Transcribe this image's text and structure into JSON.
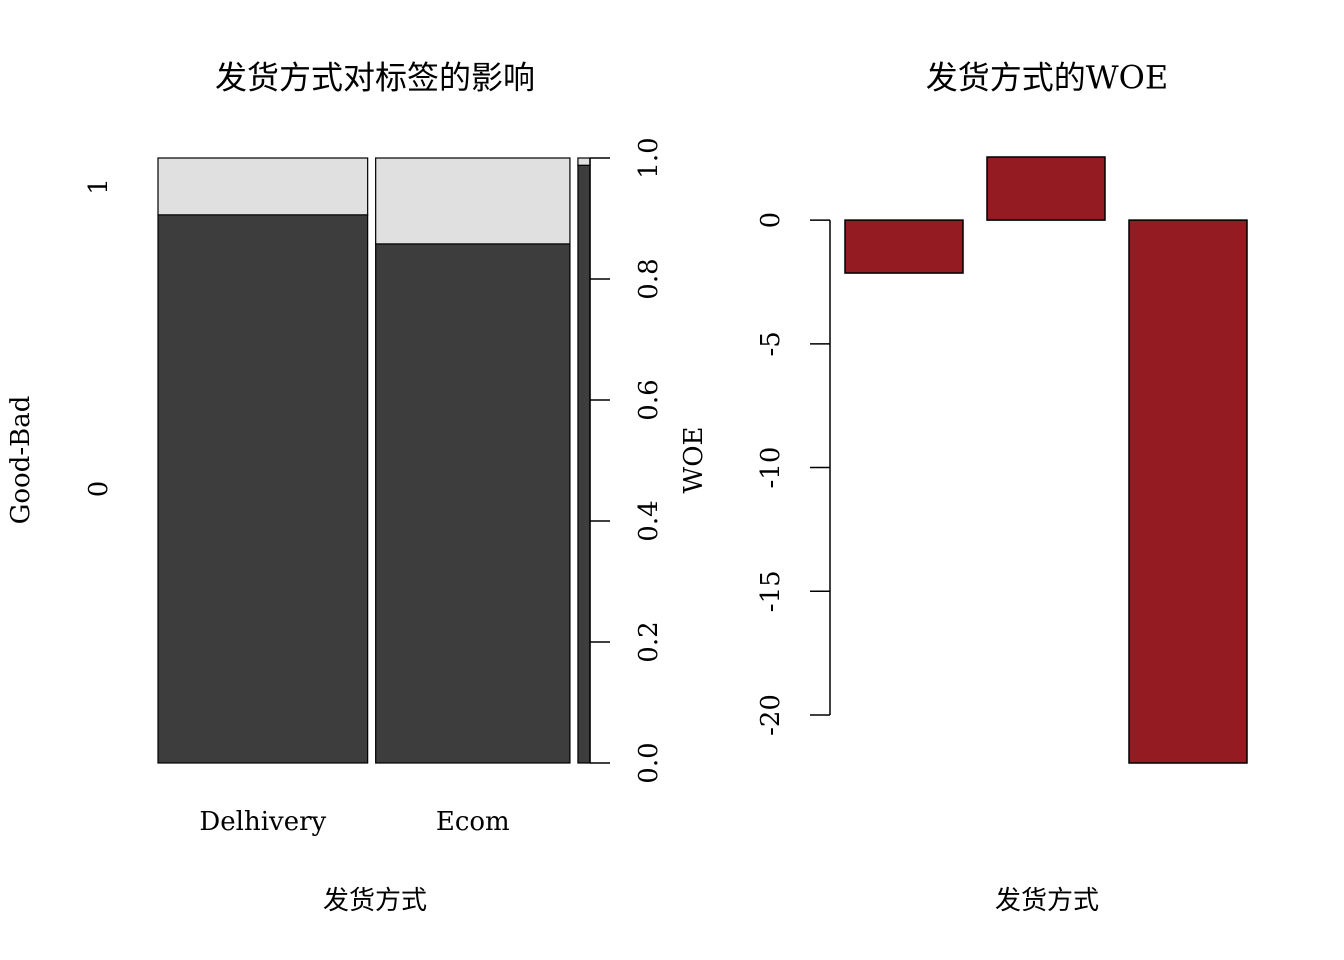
{
  "chart_data": [
    {
      "type": "spine",
      "title": "发货方式对标签的影响",
      "x_label": "发货方式",
      "y_label": "Good-Bad",
      "categories": [
        "Delhivery",
        "Ecom",
        null
      ],
      "widths": [
        0.504,
        0.467,
        0.029
      ],
      "series": [
        {
          "name": "0",
          "color": "#3d3d3d",
          "values": [
            0.906,
            0.858,
            0.988
          ]
        },
        {
          "name": "1",
          "color": "#e0e0e0",
          "values": [
            0.094,
            0.142,
            0.012
          ]
        }
      ],
      "ylim": [
        0,
        1
      ],
      "yticks": [
        {
          "value": 0,
          "label": "0.0"
        },
        {
          "value": 0.2,
          "label": "0.2"
        },
        {
          "value": 0.4,
          "label": "0.4"
        },
        {
          "value": 0.6,
          "label": "0.6"
        },
        {
          "value": 0.8,
          "label": "0.8"
        },
        {
          "value": 1,
          "label": "1.0"
        }
      ]
    },
    {
      "type": "bar",
      "title": "发货方式的WOE",
      "x_label": "发货方式",
      "y_label": "WOE",
      "categories": [
        null,
        null,
        null
      ],
      "values": [
        -2.14,
        2.55,
        -21.94
      ],
      "color": "#941b22",
      "ylim": [
        -21.94,
        2.55
      ],
      "yticks": [
        0,
        -5,
        -10,
        -15,
        -20
      ]
    }
  ]
}
